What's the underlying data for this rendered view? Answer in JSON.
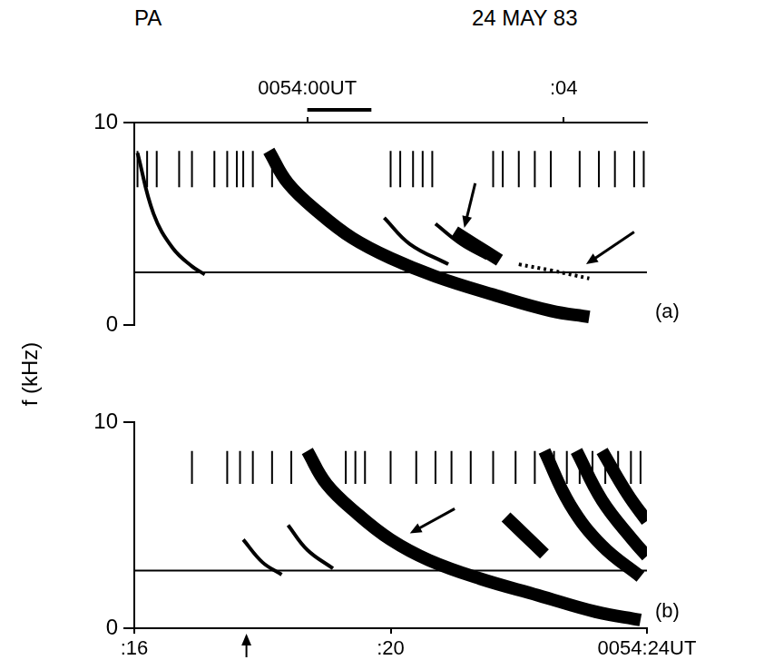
{
  "chart_data": [
    {
      "type": "line",
      "title": "24 MAY 83",
      "subtitle": "PA",
      "ylabel": "f (kHz)",
      "label": "(a)",
      "xlim": [
        -2.7,
        5.3
      ],
      "xticks": [
        {
          "value": 0,
          "label": "0054:00UT"
        },
        {
          "value": 4,
          "label": ":04"
        }
      ],
      "ylim": [
        0,
        10
      ],
      "yticks": [
        0,
        10
      ],
      "grid": false,
      "scale_bar": [
        0,
        1
      ],
      "reference_line": 2.6,
      "series": [
        {
          "color": "#000000",
          "line_style": "solid",
          "x": [
            -2.65,
            -2.4,
            -2.1,
            -1.8,
            -1.6
          ],
          "values": [
            8.5,
            5.5,
            3.8,
            2.9,
            2.5
          ]
        },
        {
          "color": "#000000",
          "line_style": "thick",
          "x": [
            -0.6,
            -0.3,
            0.2,
            0.7,
            1.3,
            2.0,
            2.9,
            3.8,
            4.4
          ],
          "values": [
            8.6,
            7.0,
            5.5,
            4.3,
            3.3,
            2.4,
            1.5,
            0.7,
            0.4
          ]
        },
        {
          "color": "#000000",
          "line_style": "solid",
          "x": [
            1.2,
            1.6,
            2.2
          ],
          "values": [
            5.3,
            4.0,
            3.0
          ]
        },
        {
          "color": "#000000",
          "line_style": "solid",
          "x": [
            2.0,
            2.4,
            2.8
          ],
          "values": [
            5.0,
            4.0,
            3.3
          ]
        },
        {
          "color": "#000000",
          "line_style": "thick",
          "x": [
            2.3,
            2.6,
            3.0
          ],
          "values": [
            4.6,
            4.0,
            3.2
          ]
        },
        {
          "color": "#000000",
          "line_style": "dotted",
          "x": [
            3.3,
            3.8,
            4.4
          ],
          "values": [
            3.0,
            2.7,
            2.3
          ]
        }
      ],
      "sferics": {
        "f_low": 6.8,
        "f_high": 8.6,
        "x": [
          -2.65,
          -2.5,
          -2.35,
          -2.0,
          -1.8,
          -1.45,
          -1.25,
          -1.1,
          -1.0,
          -0.85,
          -0.55,
          1.3,
          1.45,
          1.65,
          1.8,
          1.95,
          2.9,
          3.05,
          3.3,
          3.55,
          3.8,
          4.25,
          4.55,
          4.8,
          5.1,
          5.25
        ]
      },
      "arrows": [
        {
          "x": [
            2.62,
            2.45
          ],
          "y": [
            7.0,
            4.8
          ]
        },
        {
          "x": [
            5.1,
            4.35
          ],
          "y": [
            4.6,
            3.0
          ]
        }
      ]
    },
    {
      "type": "line",
      "label": "(b)",
      "xlim": [
        16,
        24
      ],
      "xticks": [
        {
          "value": 16,
          "label": ":16"
        },
        {
          "value": 20,
          "label": ":20"
        },
        {
          "value": 24,
          "label": "0054:24UT"
        }
      ],
      "ylim": [
        0,
        10
      ],
      "yticks": [
        0,
        10
      ],
      "grid": false,
      "reference_line": 2.8,
      "marker_time": 17.75,
      "series": [
        {
          "color": "#000000",
          "line_style": "solid",
          "x": [
            17.7,
            18.0,
            18.3
          ],
          "values": [
            4.3,
            3.2,
            2.6
          ]
        },
        {
          "color": "#000000",
          "line_style": "solid",
          "x": [
            18.4,
            18.7,
            19.1
          ],
          "values": [
            5.0,
            3.8,
            2.9
          ]
        },
        {
          "color": "#000000",
          "line_style": "thick",
          "x": [
            18.7,
            19.0,
            19.5,
            20.0,
            20.6,
            21.4,
            22.3,
            23.2,
            23.9
          ],
          "values": [
            8.6,
            7.0,
            5.5,
            4.3,
            3.3,
            2.4,
            1.6,
            0.8,
            0.4
          ]
        },
        {
          "color": "#000000",
          "line_style": "thick",
          "x": [
            21.8,
            22.1,
            22.4
          ],
          "values": [
            5.4,
            4.5,
            3.6
          ]
        },
        {
          "color": "#000000",
          "line_style": "thick",
          "x": [
            22.4,
            22.8,
            23.3,
            23.9
          ],
          "values": [
            8.6,
            6.0,
            4.0,
            2.5
          ]
        },
        {
          "color": "#000000",
          "line_style": "thick",
          "x": [
            22.9,
            23.3,
            23.8,
            24.0
          ],
          "values": [
            8.6,
            6.2,
            4.2,
            3.5
          ]
        },
        {
          "color": "#000000",
          "line_style": "thick",
          "x": [
            23.3,
            23.7,
            24.0
          ],
          "values": [
            8.6,
            6.5,
            5.2
          ]
        }
      ],
      "sferics": {
        "f_low": 7.0,
        "f_high": 8.6,
        "x": [
          16.9,
          17.45,
          17.65,
          17.85,
          18.15,
          18.45,
          19.3,
          19.45,
          19.6,
          20.0,
          20.4,
          20.7,
          20.95,
          21.25,
          21.6,
          21.95,
          22.25,
          22.55,
          22.75,
          22.95,
          23.15,
          23.35,
          23.55,
          23.75,
          23.9
        ]
      },
      "arrows": [
        {
          "x": [
            21.0,
            20.3
          ],
          "y": [
            5.8,
            4.6
          ]
        }
      ]
    }
  ]
}
